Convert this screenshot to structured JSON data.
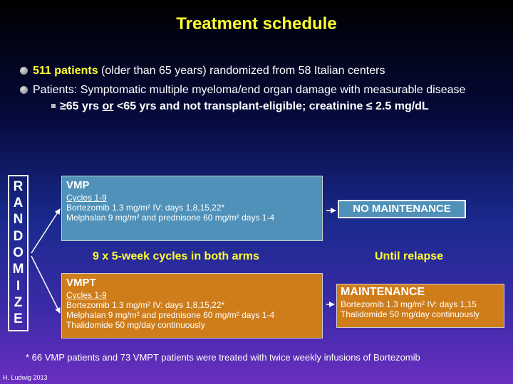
{
  "title": "Treatment schedule",
  "bullets": [
    {
      "highlight": "511 patients",
      "text": " (older than 65 years) randomized from 58 Italian centers"
    },
    {
      "text": "Patients: Symptomatic multiple myeloma/end organ damage with measurable disease"
    }
  ],
  "sub_bullet": {
    "part1": "≥65 yrs ",
    "underlined": "or",
    "part2": " <65 yrs and not transplant-eligible; creatinine ≤ 2.5 mg/dL"
  },
  "randomize_letters": [
    "R",
    "A",
    "N",
    "D",
    "O",
    "M",
    "I",
    "Z",
    "E"
  ],
  "vmp": {
    "name": "VMP",
    "cycles": "Cycles 1-9",
    "line1": "Bortezomib 1.3 mg/m² IV: days 1,8,15,22*",
    "line2": "Melphalan 9 mg/m² and prednisone 60 mg/m² days 1-4"
  },
  "vmpt": {
    "name": "VMPT",
    "cycles": "Cycles 1-9",
    "line1": "Bortezomib 1.3 mg/m² IV: days 1,8,15,22*",
    "line2": "Melphalan 9 mg/m² and prednisone 60 mg/m² days 1-4",
    "line3": "Thalidomide 50 mg/day continuously"
  },
  "no_maintenance": "NO MAINTENANCE",
  "maintenance": {
    "name": "MAINTENANCE",
    "line1": "Bortezomib 1.3 mg/m² IV: days 1,15",
    "line2": "Thalidomide 50 mg/day continuously"
  },
  "cycles_label": "9 x 5-week cycles in both arms",
  "relapse_label": "Until relapse",
  "footnote": "* 66 VMP patients and 73 VMPT patients were treated with twice weekly infusions of Bortezomib",
  "credit": "H. Ludwig 2013",
  "colors": {
    "title": "#ffff33",
    "vmp_box": "#4f91b8",
    "vmpt_box": "#cf7d1a"
  }
}
